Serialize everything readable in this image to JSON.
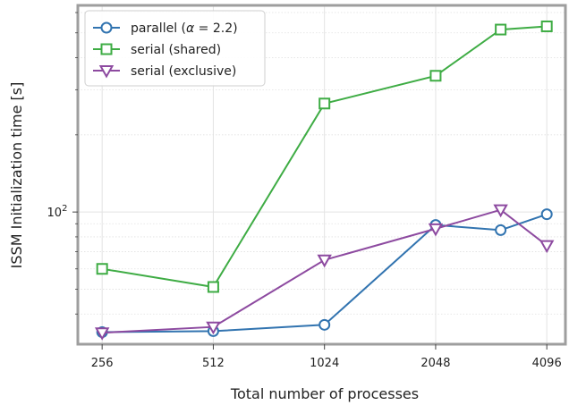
{
  "chart_data": {
    "type": "line",
    "xlabel": "Total number of processes",
    "ylabel": "ISSM Initialization time [s]",
    "x_scale": "log2",
    "y_scale": "log10",
    "x_ticks": [
      256,
      512,
      1024,
      2048,
      4096
    ],
    "y_ticks": [
      {
        "value": 100,
        "base": "10",
        "exp": "2"
      }
    ],
    "xlim": [
      220,
      4600
    ],
    "ylim": [
      30.5,
      640
    ],
    "grid": true,
    "legend_position": "top-left",
    "series": [
      {
        "name_parts": [
          "parallel (",
          "α",
          " = 2.2)"
        ],
        "marker": "circle",
        "color": "#3274b0",
        "x": [
          256,
          512,
          1024,
          2048,
          3072,
          4096
        ],
        "y": [
          34,
          34.3,
          36.3,
          89,
          85,
          98
        ]
      },
      {
        "name": "serial (shared)",
        "marker": "square",
        "color": "#3eac44",
        "x": [
          256,
          512,
          1024,
          2048,
          3072,
          4096
        ],
        "y": [
          60,
          51,
          265,
          340,
          515,
          530
        ]
      },
      {
        "name": "serial (exclusive)",
        "marker": "triangle-down",
        "color": "#8d4aa0",
        "x": [
          256,
          512,
          1024,
          2048,
          3072,
          4096
        ],
        "y": [
          33.8,
          35.6,
          65,
          86,
          102,
          74
        ]
      }
    ]
  }
}
